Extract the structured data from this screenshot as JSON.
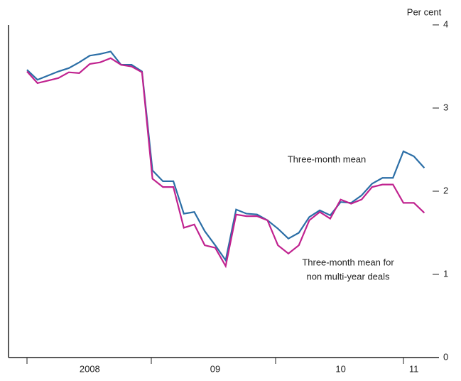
{
  "chart_data": {
    "type": "line",
    "y_unit_label": "Per cent",
    "categories": [
      null,
      null,
      null,
      null,
      null,
      null,
      "2008",
      null,
      null,
      null,
      null,
      null,
      null,
      null,
      null,
      null,
      null,
      null,
      "09",
      null,
      null,
      null,
      null,
      null,
      null,
      null,
      null,
      null,
      null,
      null,
      "10",
      null,
      null,
      null,
      null,
      null,
      null,
      "11",
      null
    ],
    "series": [
      {
        "name": "Three-month mean",
        "color": "#2b6ea6",
        "values": [
          3.46,
          3.34,
          3.39,
          3.44,
          3.48,
          3.55,
          3.63,
          3.65,
          3.68,
          3.52,
          3.52,
          3.44,
          2.25,
          2.12,
          2.12,
          1.73,
          1.75,
          1.52,
          1.35,
          1.17,
          1.78,
          1.73,
          1.72,
          1.65,
          1.55,
          1.43,
          1.5,
          1.69,
          1.77,
          1.71,
          1.87,
          1.86,
          1.95,
          2.09,
          2.16,
          2.16,
          2.48,
          2.42,
          2.28
        ]
      },
      {
        "name": "Three-month mean for non multi-year deals",
        "color": "#c0228f",
        "values": [
          3.44,
          3.3,
          3.33,
          3.36,
          3.43,
          3.42,
          3.53,
          3.55,
          3.6,
          3.52,
          3.5,
          3.43,
          2.15,
          2.05,
          2.05,
          1.56,
          1.6,
          1.35,
          1.32,
          1.1,
          1.72,
          1.7,
          1.7,
          1.65,
          1.35,
          1.25,
          1.35,
          1.65,
          1.75,
          1.67,
          1.9,
          1.85,
          1.9,
          2.05,
          2.08,
          2.08,
          1.86,
          1.86,
          1.74
        ]
      }
    ],
    "annotations": [
      {
        "lines": [
          "Three-month mean"
        ],
        "series": 0
      },
      {
        "lines": [
          "Three-month mean for",
          "non multi-year deals"
        ],
        "series": 1
      }
    ],
    "ylim": [
      0,
      4
    ],
    "yticks": [
      0,
      1,
      2,
      3,
      4
    ]
  }
}
